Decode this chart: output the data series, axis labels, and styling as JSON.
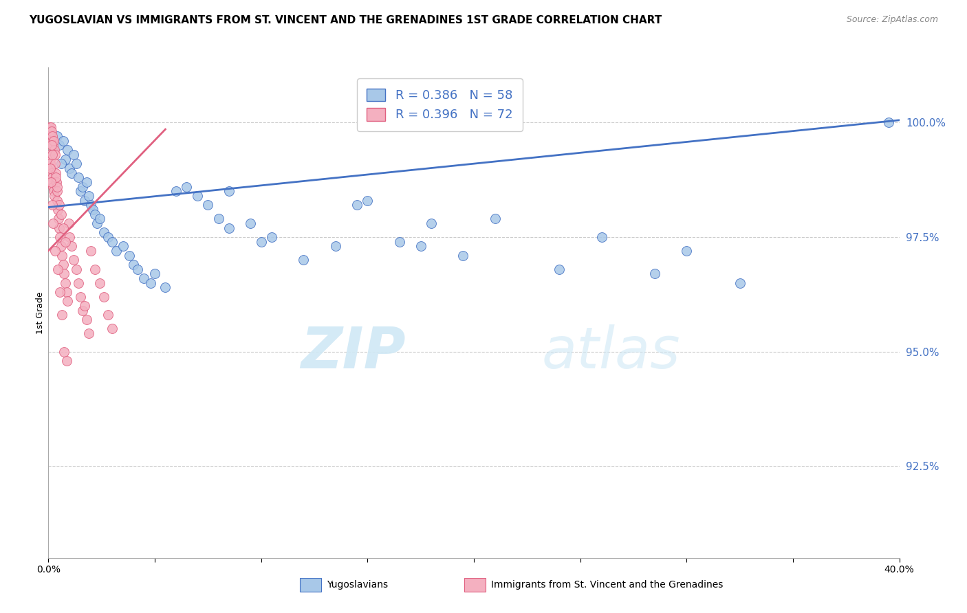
{
  "title": "YUGOSLAVIAN VS IMMIGRANTS FROM ST. VINCENT AND THE GRENADINES 1ST GRADE CORRELATION CHART",
  "source": "Source: ZipAtlas.com",
  "ylabel": "1st Grade",
  "xlim": [
    0.0,
    40.0
  ],
  "ylim": [
    90.5,
    101.2
  ],
  "yticks": [
    92.5,
    95.0,
    97.5,
    100.0
  ],
  "blue_color": "#A8C8E8",
  "pink_color": "#F4B0C0",
  "blue_line_color": "#4472C4",
  "pink_line_color": "#E06080",
  "legend_R_blue": "0.386",
  "legend_N_blue": "58",
  "legend_R_pink": "0.396",
  "legend_N_pink": "72",
  "blue_scatter_x": [
    0.4,
    0.5,
    0.7,
    0.8,
    0.9,
    1.0,
    1.1,
    1.2,
    1.3,
    1.4,
    1.5,
    1.6,
    1.7,
    1.8,
    1.9,
    2.0,
    2.1,
    2.2,
    2.3,
    2.4,
    2.6,
    2.8,
    3.0,
    3.2,
    3.5,
    3.8,
    4.0,
    4.2,
    4.5,
    4.8,
    5.0,
    5.5,
    6.0,
    6.5,
    7.0,
    7.5,
    8.0,
    8.5,
    9.5,
    10.5,
    12.0,
    13.5,
    15.0,
    16.5,
    18.0,
    19.5,
    21.0,
    24.0,
    26.0,
    28.5,
    30.0,
    32.5,
    8.5,
    10.0,
    14.5,
    17.5,
    39.5,
    0.6
  ],
  "blue_scatter_y": [
    99.7,
    99.5,
    99.6,
    99.2,
    99.4,
    99.0,
    98.9,
    99.3,
    99.1,
    98.8,
    98.5,
    98.6,
    98.3,
    98.7,
    98.4,
    98.2,
    98.1,
    98.0,
    97.8,
    97.9,
    97.6,
    97.5,
    97.4,
    97.2,
    97.3,
    97.1,
    96.9,
    96.8,
    96.6,
    96.5,
    96.7,
    96.4,
    98.5,
    98.6,
    98.4,
    98.2,
    97.9,
    97.7,
    97.8,
    97.5,
    97.0,
    97.3,
    98.3,
    97.4,
    97.8,
    97.1,
    97.9,
    96.8,
    97.5,
    96.7,
    97.2,
    96.5,
    98.5,
    97.4,
    98.2,
    97.3,
    100.0,
    99.1
  ],
  "pink_scatter_x": [
    0.05,
    0.08,
    0.1,
    0.12,
    0.15,
    0.18,
    0.2,
    0.22,
    0.25,
    0.28,
    0.05,
    0.08,
    0.1,
    0.12,
    0.15,
    0.18,
    0.2,
    0.22,
    0.25,
    0.28,
    0.3,
    0.32,
    0.35,
    0.38,
    0.4,
    0.42,
    0.45,
    0.48,
    0.5,
    0.55,
    0.6,
    0.65,
    0.7,
    0.75,
    0.8,
    0.85,
    0.9,
    0.95,
    1.0,
    1.1,
    1.2,
    1.3,
    1.4,
    1.5,
    1.6,
    1.7,
    1.8,
    1.9,
    2.0,
    2.2,
    2.4,
    2.6,
    2.8,
    3.0,
    0.15,
    0.2,
    0.35,
    0.4,
    0.5,
    0.6,
    0.7,
    0.8,
    0.1,
    0.12,
    0.18,
    0.22,
    0.3,
    0.45,
    0.55,
    0.65,
    0.75,
    0.85
  ],
  "pink_scatter_y": [
    99.9,
    99.8,
    99.7,
    99.9,
    99.8,
    99.6,
    99.7,
    99.5,
    99.6,
    99.4,
    99.3,
    99.2,
    99.1,
    99.0,
    98.9,
    98.8,
    98.7,
    98.6,
    98.5,
    98.4,
    99.3,
    99.1,
    98.9,
    98.7,
    98.5,
    98.3,
    98.1,
    97.9,
    97.7,
    97.5,
    97.3,
    97.1,
    96.9,
    96.7,
    96.5,
    96.3,
    96.1,
    97.8,
    97.5,
    97.3,
    97.0,
    96.8,
    96.5,
    96.2,
    95.9,
    96.0,
    95.7,
    95.4,
    97.2,
    96.8,
    96.5,
    96.2,
    95.8,
    95.5,
    99.5,
    99.3,
    98.8,
    98.6,
    98.2,
    98.0,
    97.7,
    97.4,
    99.0,
    98.7,
    98.2,
    97.8,
    97.2,
    96.8,
    96.3,
    95.8,
    95.0,
    94.8
  ],
  "blue_trend_x": [
    0.0,
    40.0
  ],
  "blue_trend_y": [
    98.15,
    100.05
  ],
  "pink_trend_x": [
    0.0,
    5.5
  ],
  "pink_trend_y": [
    97.2,
    99.85
  ],
  "watermark_zip": "ZIP",
  "watermark_atlas": "atlas",
  "watermark_color": "#D0E8F5"
}
